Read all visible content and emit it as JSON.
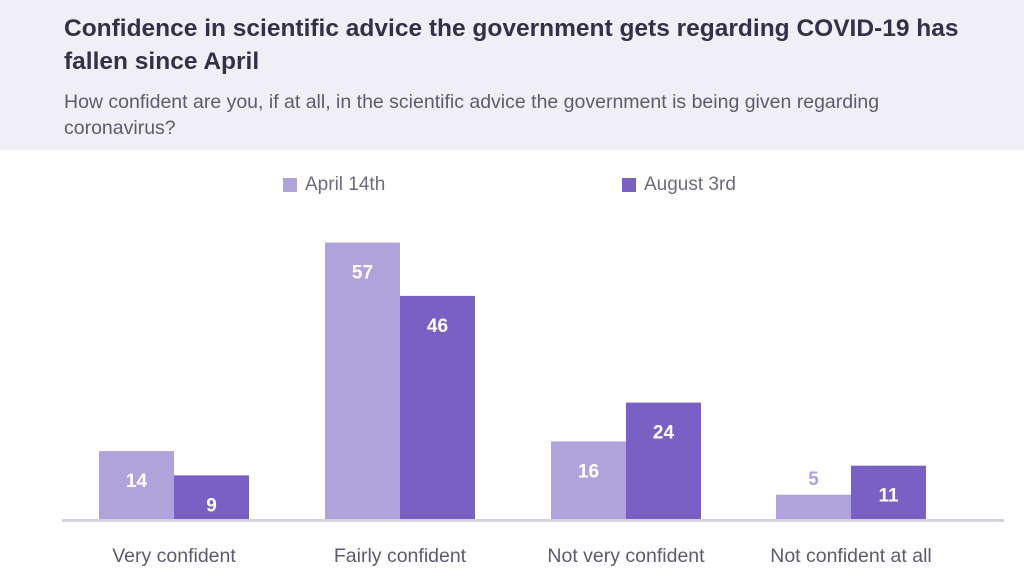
{
  "header": {
    "title": "Confidence in scientific advice the government gets regarding COVID-19 has fallen since April",
    "subtitle": "How confident are you, if at all, in the scientific advice the government is being given regarding coronavirus?"
  },
  "colors": {
    "header_bg": "#f1eff6",
    "april": "#b0a3dc",
    "august": "#7a60c2",
    "axis": "#d5d2dd"
  },
  "chart_data": {
    "type": "bar",
    "categories": [
      "Very confident",
      "Fairly confident",
      "Not very confident",
      "Not confident at all"
    ],
    "series": [
      {
        "name": "April 14th",
        "values": [
          14,
          57,
          16,
          5
        ]
      },
      {
        "name": "August 3rd",
        "values": [
          9,
          46,
          24,
          11
        ]
      }
    ],
    "ylim": [
      0,
      60
    ],
    "legend_position": "top",
    "grid": false,
    "data_labels": true
  }
}
